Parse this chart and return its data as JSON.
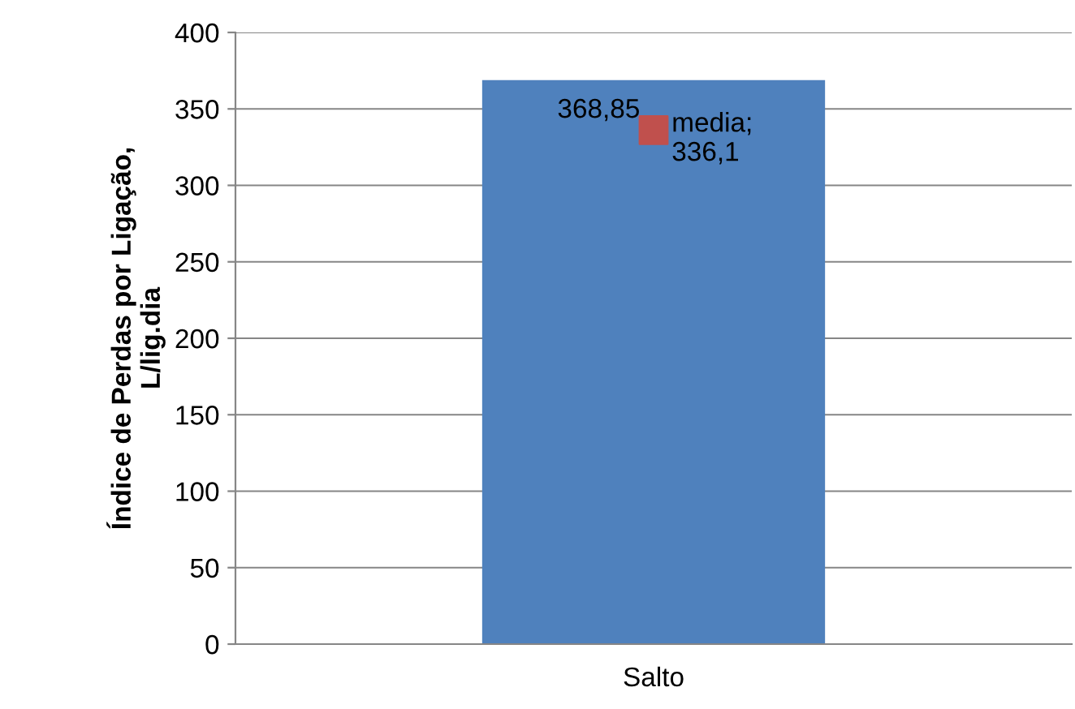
{
  "chart_data": {
    "type": "bar",
    "ylabel": "Índice de Perdas por Ligação,\nL/lig.dia",
    "categories": [
      "Salto"
    ],
    "series": [
      {
        "color": "#4f81bd",
        "values": [
          368.85
        ],
        "value_labels": [
          "368,85"
        ]
      },
      {
        "type": "scatter",
        "color": "#c0504d",
        "marker": "square",
        "values": [
          336.1
        ],
        "value_labels": [
          "media;\n336,1"
        ]
      }
    ],
    "ylim": [
      0,
      400
    ],
    "yticks": [
      0,
      50,
      100,
      150,
      200,
      250,
      300,
      350,
      400
    ],
    "grid": "y",
    "legend": false
  }
}
